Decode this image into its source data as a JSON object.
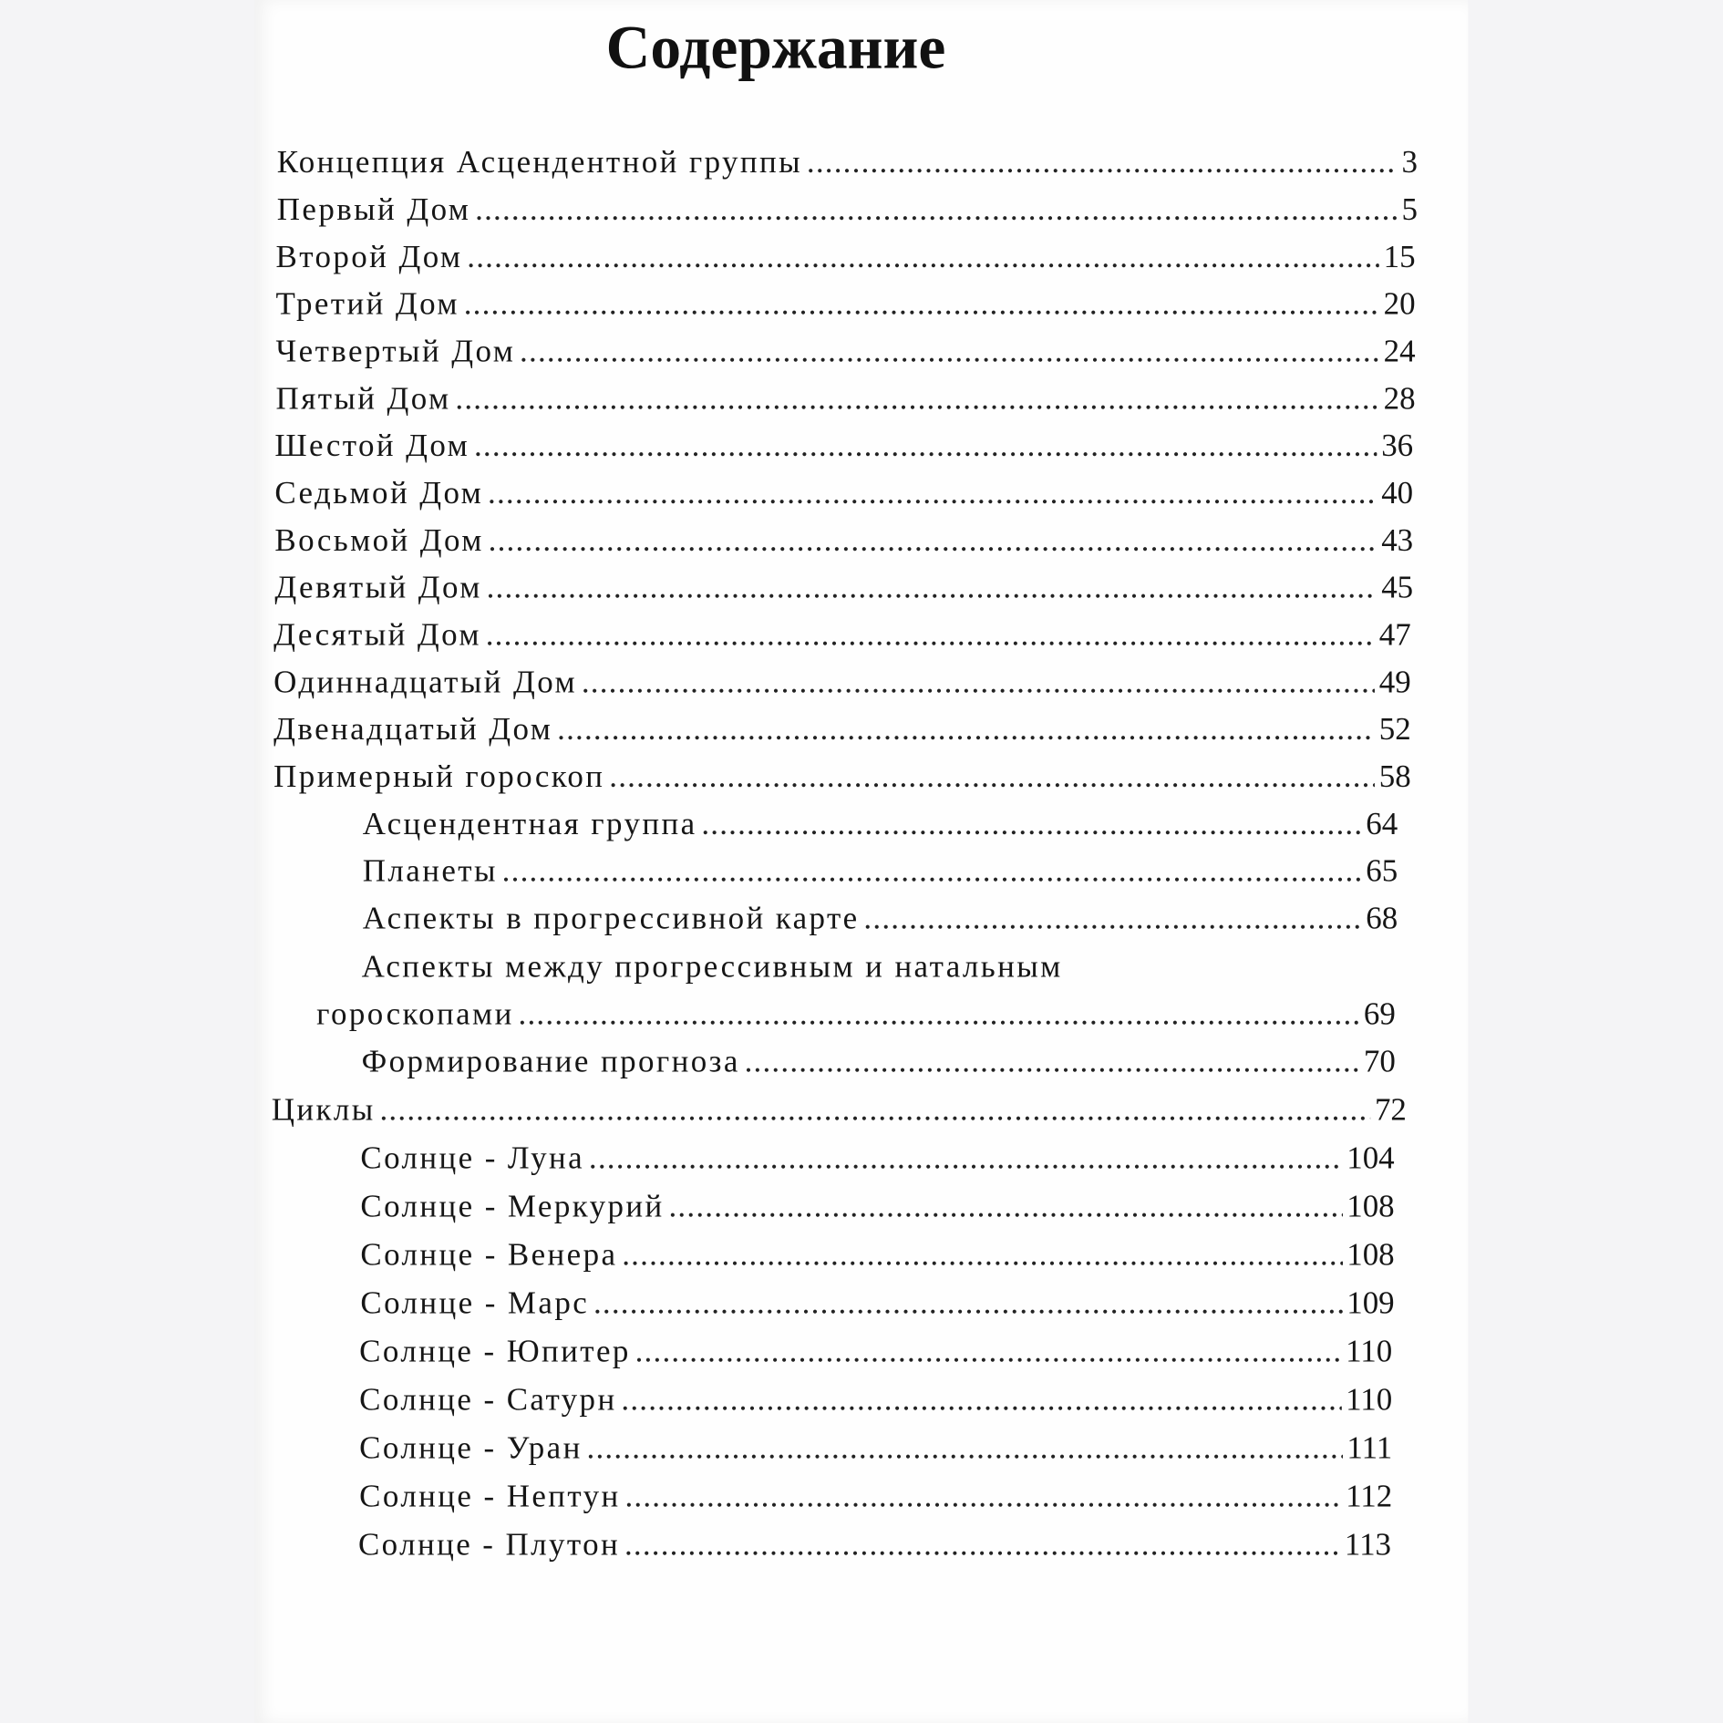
{
  "title": "Содержание",
  "entries": [
    {
      "text": "Концепция Асцендентной группы",
      "page": "3",
      "level": 0
    },
    {
      "text": "Первый Дом",
      "page": "5",
      "level": 0
    },
    {
      "text": "Второй Дом",
      "page": "15",
      "level": 0
    },
    {
      "text": "Третий Дом",
      "page": "20",
      "level": 0
    },
    {
      "text": "Четвертый Дом",
      "page": "24",
      "level": 0
    },
    {
      "text": "Пятый Дом",
      "page": "28",
      "level": 0
    },
    {
      "text": "Шестой Дом",
      "page": "36",
      "level": 0
    },
    {
      "text": "Седьмой Дом",
      "page": "40",
      "level": 0
    },
    {
      "text": "Восьмой Дом",
      "page": "43",
      "level": 0
    },
    {
      "text": "Девятый Дом",
      "page": "45",
      "level": 0
    },
    {
      "text": "Десятый Дом",
      "page": "47",
      "level": 0
    },
    {
      "text": "Одиннадцатый Дом",
      "page": "49",
      "level": 0
    },
    {
      "text": "Двенадцатый Дом",
      "page": "52",
      "level": 0
    },
    {
      "text": "Примерный гороскоп",
      "page": "58",
      "level": 0
    },
    {
      "text": "Асцендентная группа",
      "page": "64",
      "level": 1
    },
    {
      "text": "Планеты",
      "page": "65",
      "level": 1
    },
    {
      "text": "Аспекты в прогрессивной карте",
      "page": "68",
      "level": 1
    },
    {
      "text": "Аспекты между прогрессивным и натальным",
      "text2": "гороскопами",
      "page": "69",
      "level": 1
    },
    {
      "text": "Формирование прогноза",
      "page": "70",
      "level": 1
    },
    {
      "text": "Циклы",
      "page": "72",
      "level": 0
    },
    {
      "text": "Солнце - Луна",
      "page": "104",
      "level": 1
    },
    {
      "text": "Солнце - Меркурий",
      "page": "108",
      "level": 1
    },
    {
      "text": "Солнце - Венера",
      "page": "108",
      "level": 1
    },
    {
      "text": "Солнце - Марс",
      "page": "109",
      "level": 1
    },
    {
      "text": "Солнце - Юпитер",
      "page": "110",
      "level": 1
    },
    {
      "text": "Солнце - Сатурн",
      "page": "110",
      "level": 1
    },
    {
      "text": "Солнце - Уран",
      "page": "111",
      "level": 1
    },
    {
      "text": "Солнце - Нептун",
      "page": "112",
      "level": 1
    },
    {
      "text": "Солнце - Плутон",
      "page": "113",
      "level": 1
    }
  ]
}
